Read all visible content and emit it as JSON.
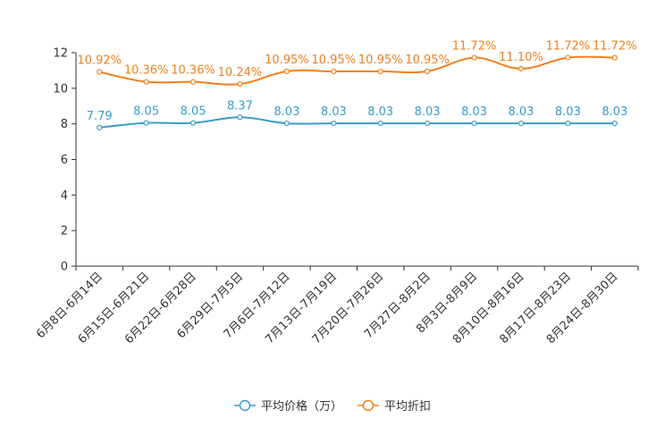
{
  "chart_data": {
    "type": "line",
    "categories": [
      "6月8日-6月14日",
      "6月15日-6月21日",
      "6月22日-6月28日",
      "6月29日-7月5日",
      "7月6日-7月12日",
      "7月13日-7月19日",
      "7月20日-7月26日",
      "7月27日-8月2日",
      "8月3日-8月9日",
      "8月10日-8月16日",
      "8月17日-8月23日",
      "8月24日-8月30日"
    ],
    "ylim": [
      0,
      12
    ],
    "yticks": [
      0,
      2,
      4,
      6,
      8,
      10,
      12
    ],
    "series": [
      {
        "name": "平均价格（万）",
        "color": "#3a9ccc",
        "values": [
          7.79,
          8.05,
          8.05,
          8.37,
          8.03,
          8.03,
          8.03,
          8.03,
          8.03,
          8.03,
          8.03,
          8.03
        ],
        "labels": [
          "7.79",
          "8.05",
          "8.05",
          "8.37",
          "8.03",
          "8.03",
          "8.03",
          "8.03",
          "8.03",
          "8.03",
          "8.03",
          "8.03"
        ]
      },
      {
        "name": "平均折扣",
        "color": "#f07f1e",
        "values": [
          10.92,
          10.36,
          10.36,
          10.24,
          10.95,
          10.95,
          10.95,
          10.95,
          11.72,
          11.1,
          11.72,
          11.72
        ],
        "labels": [
          "10.92%",
          "10.36%",
          "10.36%",
          "10.24%",
          "10.95%",
          "10.95%",
          "10.95%",
          "10.95%",
          "11.72%",
          "11.10%",
          "11.72%",
          "11.72%"
        ]
      }
    ],
    "legend_position": "bottom-center"
  }
}
